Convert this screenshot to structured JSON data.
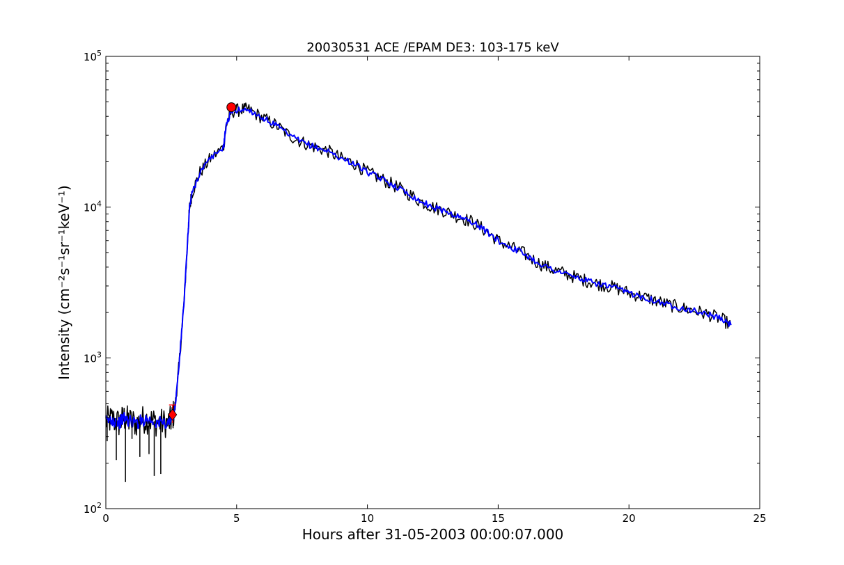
{
  "chart_data": {
    "type": "line",
    "title": "20030531 ACE /EPAM DE3: 103-175 keV",
    "xlabel": "Hours after 31-05-2003 00:00:07.000",
    "ylabel": "Intensity (cm⁻²s⁻¹sr⁻¹keV⁻¹)",
    "xlim": [
      0,
      25
    ],
    "ylim": [
      100,
      100000
    ],
    "yscale": "log",
    "x_ticks": [
      "0",
      "5",
      "10",
      "15",
      "20",
      "25"
    ],
    "y_ticks": [
      {
        "base": "10",
        "exp": "2"
      },
      {
        "base": "10",
        "exp": "3"
      },
      {
        "base": "10",
        "exp": "4"
      },
      {
        "base": "10",
        "exp": "5"
      }
    ],
    "grid": false,
    "colors": {
      "raw": "#000000",
      "smoothed": "#0000ff",
      "markers": "#ff0000"
    },
    "series": [
      {
        "style": "raw",
        "x": [
          0,
          0.25,
          0.5,
          0.7,
          0.9,
          1.2,
          1.5,
          1.8,
          2.1,
          2.4,
          2.55,
          2.65,
          2.8,
          3.0,
          3.15,
          3.2,
          3.3,
          3.6,
          4.0,
          4.5,
          4.6,
          4.8,
          5.2,
          5.5,
          6.0,
          6.5,
          7.0,
          7.5,
          8.0,
          8.5,
          9.0,
          9.5,
          10.0,
          10.5,
          11.0,
          11.5,
          12.0,
          12.5,
          13.0,
          13.5,
          14.0,
          14.5,
          15.0,
          15.5,
          16.0,
          16.5,
          17.0,
          17.5,
          18.0,
          18.5,
          19.0,
          19.5,
          20.0,
          20.5,
          21.0,
          21.5,
          22.0,
          22.5,
          23.0,
          23.5,
          23.9
        ],
        "y": [
          380,
          390,
          370,
          400,
          380,
          370,
          395,
          380,
          370,
          370,
          400,
          480,
          900,
          2500,
          7000,
          10000,
          12500,
          17000,
          21000,
          25000,
          35000,
          43000,
          44500,
          44000,
          39000,
          35000,
          30000,
          27000,
          25000,
          23500,
          21000,
          19500,
          17000,
          15500,
          14000,
          12500,
          11000,
          10000,
          9400,
          8600,
          8000,
          7000,
          6000,
          5400,
          4900,
          4300,
          3900,
          3650,
          3400,
          3200,
          3050,
          2900,
          2700,
          2550,
          2400,
          2250,
          2150,
          2050,
          1950,
          1820,
          1650
        ]
      },
      {
        "style": "smoothed",
        "x": [
          0,
          0.25,
          0.5,
          0.7,
          0.9,
          1.2,
          1.5,
          1.8,
          2.1,
          2.4,
          2.55,
          2.65,
          2.8,
          3.0,
          3.15,
          3.2,
          3.3,
          3.6,
          4.0,
          4.5,
          4.6,
          4.8,
          5.2,
          5.5,
          6.0,
          6.5,
          7.0,
          7.5,
          8.0,
          8.5,
          9.0,
          9.5,
          10.0,
          10.5,
          11.0,
          11.5,
          12.0,
          12.5,
          13.0,
          13.5,
          14.0,
          14.5,
          15.0,
          15.5,
          16.0,
          16.5,
          17.0,
          17.5,
          18.0,
          18.5,
          19.0,
          19.5,
          20.0,
          20.5,
          21.0,
          21.5,
          22.0,
          22.5,
          23.0,
          23.5,
          23.9
        ],
        "y": [
          380,
          390,
          370,
          400,
          380,
          370,
          395,
          380,
          370,
          370,
          400,
          480,
          900,
          2500,
          7000,
          10000,
          12500,
          17000,
          21000,
          25000,
          35000,
          43000,
          44500,
          44000,
          39000,
          35000,
          30000,
          27000,
          25000,
          23500,
          21000,
          19500,
          17000,
          15500,
          14000,
          12500,
          11000,
          10000,
          9400,
          8600,
          8000,
          7000,
          6000,
          5400,
          4900,
          4300,
          3900,
          3650,
          3400,
          3200,
          3050,
          2900,
          2700,
          2550,
          2400,
          2250,
          2150,
          2050,
          1950,
          1820,
          1650
        ]
      }
    ],
    "markers": [
      {
        "x": 2.55,
        "y": 420
      },
      {
        "x": 4.8,
        "y": 46000
      }
    ]
  }
}
